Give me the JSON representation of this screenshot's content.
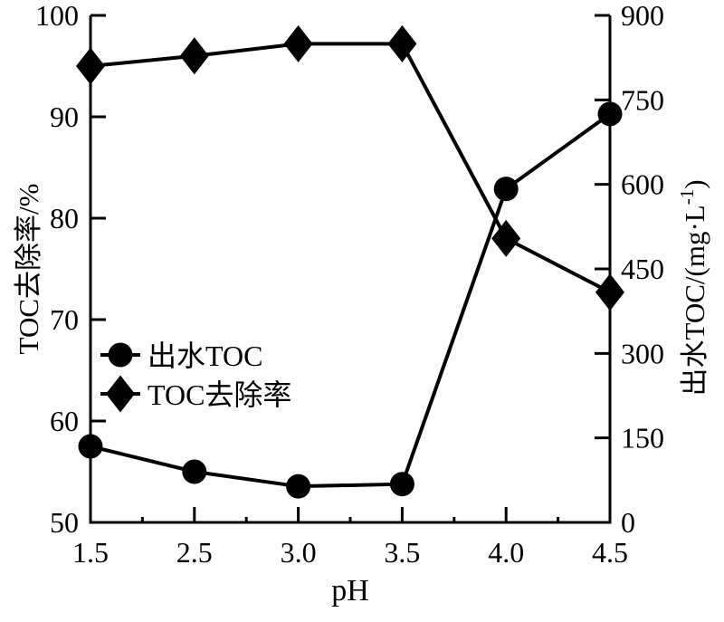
{
  "chart_data": {
    "type": "line",
    "title": "",
    "xlabel": "pH",
    "x_categories": [
      "1.5",
      "2.5",
      "3.0",
      "3.5",
      "4.0",
      "4.5"
    ],
    "left_axis": {
      "label": "TOC去除率/%",
      "min": 50,
      "max": 100,
      "ticks": [
        50,
        60,
        70,
        80,
        90,
        100
      ]
    },
    "right_axis": {
      "label_prefix": "出水TOC/(mg·L",
      "label_sup": "-1",
      "label_suffix": ")",
      "min": 0,
      "max": 900,
      "ticks": [
        0,
        150,
        300,
        450,
        600,
        750,
        900
      ]
    },
    "series": [
      {
        "name": "出水TOC",
        "axis": "right",
        "marker": "circle",
        "values": [
          135,
          90,
          64,
          68,
          592,
          725
        ]
      },
      {
        "name": "TOC去除率",
        "axis": "left",
        "marker": "diamond",
        "values": [
          95.0,
          96.0,
          97.2,
          97.2,
          78.0,
          72.7
        ]
      }
    ],
    "legend": {
      "position": "inside-left-middle",
      "items": [
        "出水TOC",
        "TOC去除率"
      ]
    },
    "grid": "off",
    "colors": {
      "line": "#000000",
      "marker": "#000000",
      "background": "#ffffff"
    }
  }
}
